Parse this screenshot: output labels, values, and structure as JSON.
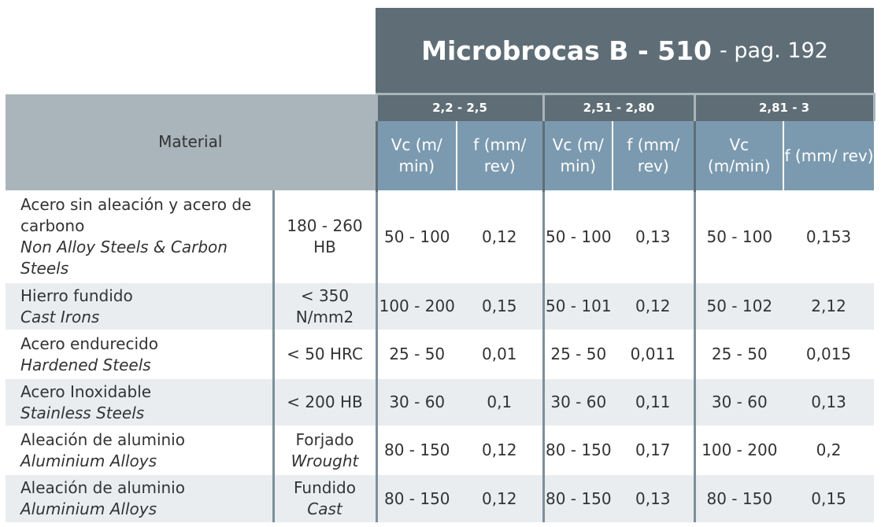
{
  "header": {
    "title": "Microbrocas B - 510",
    "page": "- pag. 192"
  },
  "table": {
    "material_header": "Material",
    "groups": [
      {
        "range": "2,2 - 2,5",
        "vc": "Vc (m/ min)",
        "f": "f (mm/ rev)"
      },
      {
        "range": "2,51 - 2,80",
        "vc": "Vc (m/ min)",
        "f": "f (mm/ rev)"
      },
      {
        "range": "2,81 - 3",
        "vc": "Vc (m/min)",
        "f": "f (mm/ rev)"
      }
    ],
    "rows": [
      {
        "material": "Acero sin aleación y acero de carbono",
        "material_en": "Non Alloy Steels & Carbon Steels",
        "hardness": "180 - 260 HB",
        "values": [
          "50 - 100",
          "0,12",
          "50 - 100",
          "0,13",
          "50 - 100",
          "0,153"
        ]
      },
      {
        "material": "Hierro fundido",
        "material_en": "Cast Irons",
        "hardness": "< 350 N/mm2",
        "values": [
          "100 - 200",
          "0,15",
          "50 - 101",
          "0,12",
          "50 - 102",
          "2,12"
        ]
      },
      {
        "material": "Acero endurecido",
        "material_en": "Hardened Steels",
        "hardness": "< 50 HRC",
        "values": [
          "25 - 50",
          "0,01",
          "25 - 50",
          "0,011",
          "25 - 50",
          "0,015"
        ]
      },
      {
        "material": "Acero Inoxidable",
        "material_en": "Stainless Steels",
        "hardness": "< 200 HB",
        "values": [
          "30 - 60",
          "0,1",
          "30 - 60",
          "0,11",
          "30 - 60",
          "0,13"
        ]
      },
      {
        "material": "Aleación de aluminio",
        "material_en": "Aluminium Alloys",
        "hardness": "Forjado",
        "hardness_en": "Wrought",
        "values": [
          "80 - 150",
          "0,12",
          "80 - 150",
          "0,17",
          "100 - 200",
          "0,2"
        ]
      },
      {
        "material": "Aleación de aluminio",
        "material_en": "Aluminium Alloys",
        "hardness": "Fundido",
        "hardness_en": "Cast",
        "values": [
          "80 - 150",
          "0,12",
          "80 - 150",
          "0,13",
          "80 - 150",
          "0,15"
        ]
      }
    ]
  }
}
